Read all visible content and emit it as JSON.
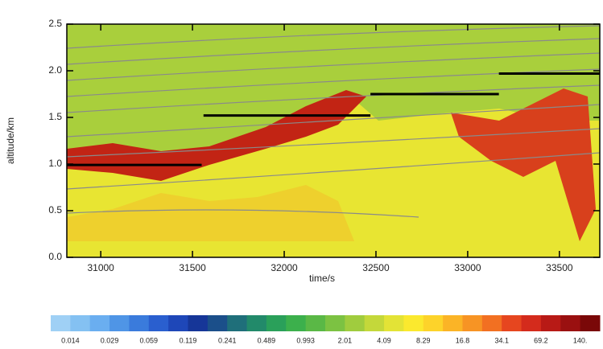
{
  "chart_data": {
    "type": "segments",
    "x_label": "time/s",
    "y_label": "altitude/km",
    "xlim": [
      30815,
      33720
    ],
    "ylim": [
      0,
      2.5
    ],
    "xticks": [
      31000,
      31500,
      32000,
      32500,
      33000,
      33500
    ],
    "yticks": [
      {
        "value": 0,
        "label": "0.0"
      },
      0.5,
      {
        "value": 1,
        "label": "1.0"
      },
      1.5,
      {
        "value": 2,
        "label": "2.0"
      },
      2.5
    ],
    "color": "#000000",
    "segments": [
      {
        "x": [
          30815,
          31550
        ],
        "values": [
          0.99,
          0.99
        ]
      },
      {
        "x": [
          31560,
          32470
        ],
        "values": [
          1.52,
          1.52
        ]
      },
      {
        "x": [
          32470,
          33170
        ],
        "values": [
          1.75,
          1.75
        ]
      },
      {
        "x": [
          33170,
          33720
        ],
        "values": [
          1.97,
          1.97
        ]
      }
    ],
    "colorbar": {
      "colors": [
        "#9fd0f5",
        "#84c1f2",
        "#6aaef0",
        "#4f95e6",
        "#3a7bdc",
        "#2a5fcf",
        "#1e47b8",
        "#163698",
        "#1b4f8a",
        "#1f6f7a",
        "#228a6a",
        "#2aa05a",
        "#3cb04c",
        "#5ab846",
        "#7cc242",
        "#a0cc3e",
        "#c4d83a",
        "#e3e336",
        "#fbe92e",
        "#fdd32a",
        "#fbb426",
        "#f79424",
        "#f27022",
        "#e6461f",
        "#d42b1c",
        "#b81a16",
        "#9a1010",
        "#7a0808"
      ],
      "ticks": [
        0.014,
        0.029,
        0.059,
        0.119,
        0.241,
        0.489,
        0.993,
        2.01,
        4.09,
        8.29,
        16.8,
        34.1,
        69.2,
        {
          "value": 140,
          "label": "140."
        }
      ]
    }
  }
}
